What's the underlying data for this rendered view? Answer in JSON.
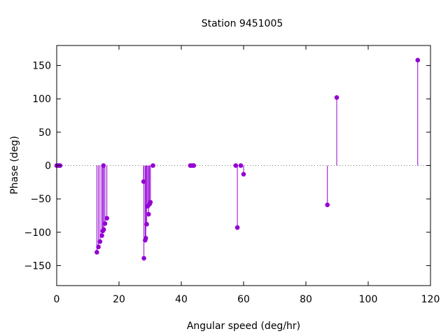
{
  "chart_data": {
    "type": "scatter",
    "style": "impulses-with-points",
    "title": "Station 9451005",
    "xlabel": "Angular speed (deg/hr)",
    "ylabel": "Phase (deg)",
    "xlim": [
      0,
      120
    ],
    "ylim": [
      -180,
      180
    ],
    "xticks": [
      0,
      20,
      40,
      60,
      80,
      100,
      120
    ],
    "yticks": [
      -150,
      -100,
      -50,
      0,
      50,
      100,
      150
    ],
    "zero_line": true,
    "grid": false,
    "color": "#9400d3",
    "points": [
      {
        "x": 0.0,
        "y": 0
      },
      {
        "x": 0.5,
        "y": 0
      },
      {
        "x": 0.8,
        "y": 0
      },
      {
        "x": 1.1,
        "y": 0
      },
      {
        "x": 12.9,
        "y": -130
      },
      {
        "x": 13.4,
        "y": -122
      },
      {
        "x": 13.9,
        "y": -114
      },
      {
        "x": 14.5,
        "y": -105
      },
      {
        "x": 14.8,
        "y": -98
      },
      {
        "x": 15.0,
        "y": 0
      },
      {
        "x": 15.1,
        "y": -96
      },
      {
        "x": 15.5,
        "y": -87
      },
      {
        "x": 16.1,
        "y": -79
      },
      {
        "x": 27.9,
        "y": -24
      },
      {
        "x": 28.0,
        "y": -139
      },
      {
        "x": 28.4,
        "y": -112
      },
      {
        "x": 28.6,
        "y": -109
      },
      {
        "x": 28.9,
        "y": -88
      },
      {
        "x": 29.2,
        "y": -61
      },
      {
        "x": 29.5,
        "y": -73
      },
      {
        "x": 29.8,
        "y": -58
      },
      {
        "x": 30.1,
        "y": -55
      },
      {
        "x": 30.9,
        "y": 0
      },
      {
        "x": 42.9,
        "y": 0
      },
      {
        "x": 43.3,
        "y": 0
      },
      {
        "x": 43.7,
        "y": 0
      },
      {
        "x": 44.0,
        "y": 0
      },
      {
        "x": 57.5,
        "y": 0
      },
      {
        "x": 58.0,
        "y": -93
      },
      {
        "x": 59.1,
        "y": 0
      },
      {
        "x": 60.0,
        "y": -13
      },
      {
        "x": 86.9,
        "y": -59
      },
      {
        "x": 89.9,
        "y": 102
      },
      {
        "x": 115.9,
        "y": 158
      }
    ]
  }
}
